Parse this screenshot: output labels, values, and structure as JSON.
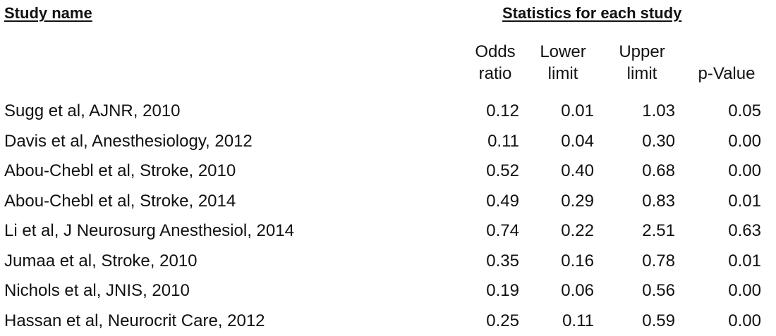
{
  "headers": {
    "study_name": "Study name",
    "statistics": "Statistics for each study"
  },
  "columns": {
    "odds_ratio": [
      "Odds",
      "ratio"
    ],
    "lower_limit": [
      "Lower",
      "limit"
    ],
    "upper_limit": [
      "Upper",
      "limit"
    ],
    "p_value": "p-Value"
  },
  "chart_data": {
    "type": "table",
    "columns": [
      "Study name",
      "Odds ratio",
      "Lower limit",
      "Upper limit",
      "p-Value"
    ],
    "rows": [
      {
        "study": "Sugg et al, AJNR, 2010",
        "odds_ratio": "0.12",
        "lower_limit": "0.01",
        "upper_limit": "1.03",
        "p_value": "0.05"
      },
      {
        "study": "Davis et al, Anesthesiology, 2012",
        "odds_ratio": "0.11",
        "lower_limit": "0.04",
        "upper_limit": "0.30",
        "p_value": "0.00"
      },
      {
        "study": "Abou-Chebl et al, Stroke, 2010",
        "odds_ratio": "0.52",
        "lower_limit": "0.40",
        "upper_limit": "0.68",
        "p_value": "0.00"
      },
      {
        "study": "Abou-Chebl et al, Stroke, 2014",
        "odds_ratio": "0.49",
        "lower_limit": "0.29",
        "upper_limit": "0.83",
        "p_value": "0.01"
      },
      {
        "study": "Li et al, J Neurosurg Anesthesiol, 2014",
        "odds_ratio": "0.74",
        "lower_limit": "0.22",
        "upper_limit": "2.51",
        "p_value": "0.63"
      },
      {
        "study": "Jumaa et al, Stroke, 2010",
        "odds_ratio": "0.35",
        "lower_limit": "0.16",
        "upper_limit": "0.78",
        "p_value": "0.01"
      },
      {
        "study": "Nichols et al, JNIS,  2010",
        "odds_ratio": "0.19",
        "lower_limit": "0.06",
        "upper_limit": "0.56",
        "p_value": "0.00"
      },
      {
        "study": "Hassan et al, Neurocrit Care, 2012",
        "odds_ratio": "0.25",
        "lower_limit": "0.11",
        "upper_limit": "0.59",
        "p_value": "0.00"
      }
    ]
  }
}
